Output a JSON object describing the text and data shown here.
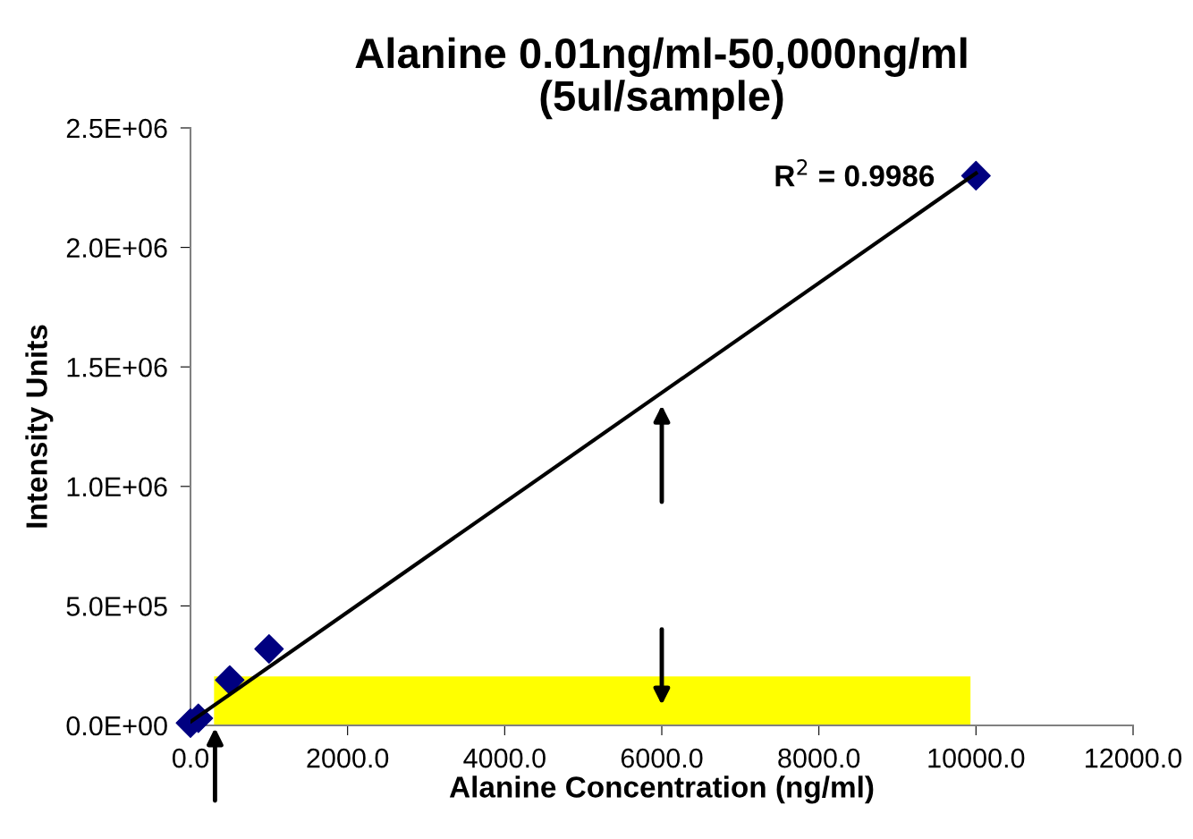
{
  "chart_data": {
    "type": "scatter",
    "title": "Alanine 0.01ng/ml-50,000ng/ml\n(5ul/sample)",
    "xlabel": "Alanine Concentration (ng/ml)",
    "ylabel": "Intensity Units",
    "x": [
      0,
      100,
      500,
      1000,
      10000
    ],
    "series": [
      {
        "color": "#000080",
        "marker": "diamond",
        "values": [
          10000,
          30000,
          190000,
          320000,
          2300000
        ]
      },
      {
        "type": "line",
        "color": "#000000",
        "marker": "none",
        "x": [
          0,
          10000
        ],
        "values": [
          15000,
          2310000
        ]
      }
    ],
    "xlim": [
      0,
      12000
    ],
    "ylim": [
      0,
      2500000
    ],
    "xticks": [
      {
        "value": 0,
        "label": "0.0"
      },
      {
        "value": 2000,
        "label": "2000.0"
      },
      {
        "value": 4000,
        "label": "4000.0"
      },
      {
        "value": 6000,
        "label": "6000.0"
      },
      {
        "value": 8000,
        "label": "8000.0"
      },
      {
        "value": 10000,
        "label": "10000.0"
      },
      {
        "value": 12000,
        "label": "12000.0"
      }
    ],
    "yticks": [
      {
        "value": 0,
        "label": "0.0E+00"
      },
      {
        "value": 500000,
        "label": "5.0E+05"
      },
      {
        "value": 1000000,
        "label": "1.0E+06"
      },
      {
        "value": 1500000,
        "label": "1.5E+06"
      },
      {
        "value": 2000000,
        "label": "2.0E+06"
      },
      {
        "value": 2500000,
        "label": "2.5E+06"
      }
    ],
    "bands": [
      {
        "axis": "y",
        "from": 0,
        "to": 205000,
        "color": "#ffff00"
      }
    ],
    "annotations": [
      "R$^{2}$ = 0.9986"
    ],
    "grid": false,
    "legend": false
  }
}
